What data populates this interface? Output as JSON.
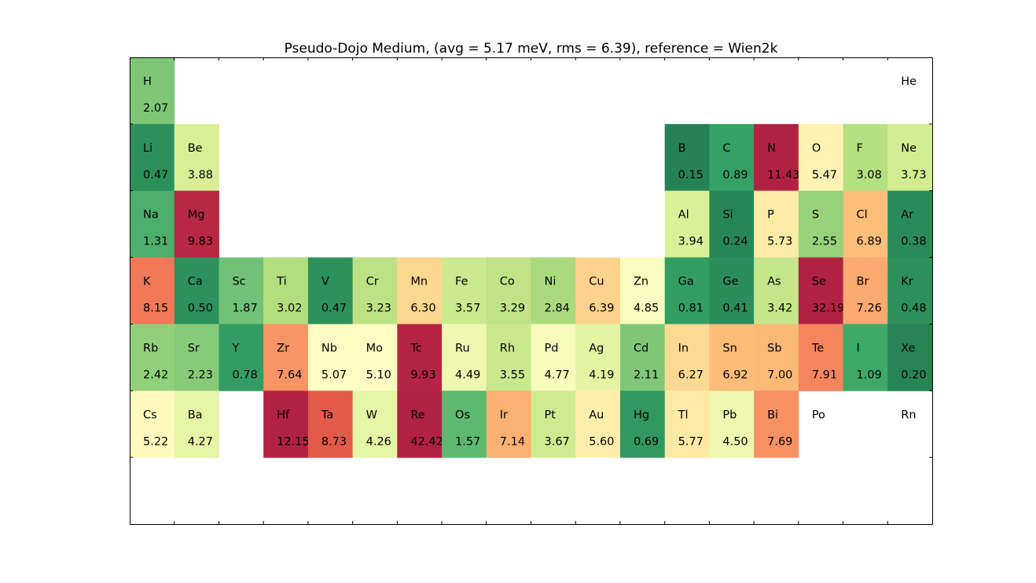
{
  "chart_data": {
    "type": "heatmap",
    "title": "Pseudo-Dojo Medium, (avg = 5.17 meV, rms = 6.39), reference = Wien2k",
    "layout": "periodic-table",
    "grid": false,
    "colormap": "RdYlGn_r",
    "color_range": [
      0,
      10
    ],
    "elements": [
      {
        "symbol": "H",
        "period": 1,
        "group": 1,
        "value": "2.07"
      },
      {
        "symbol": "He",
        "period": 1,
        "group": 18,
        "value": null
      },
      {
        "symbol": "Li",
        "period": 2,
        "group": 1,
        "value": "0.47"
      },
      {
        "symbol": "Be",
        "period": 2,
        "group": 2,
        "value": "3.88"
      },
      {
        "symbol": "B",
        "period": 2,
        "group": 13,
        "value": "0.15"
      },
      {
        "symbol": "C",
        "period": 2,
        "group": 14,
        "value": "0.89"
      },
      {
        "symbol": "N",
        "period": 2,
        "group": 15,
        "value": "11.43"
      },
      {
        "symbol": "O",
        "period": 2,
        "group": 16,
        "value": "5.47"
      },
      {
        "symbol": "F",
        "period": 2,
        "group": 17,
        "value": "3.08"
      },
      {
        "symbol": "Ne",
        "period": 2,
        "group": 18,
        "value": "3.73"
      },
      {
        "symbol": "Na",
        "period": 3,
        "group": 1,
        "value": "1.31"
      },
      {
        "symbol": "Mg",
        "period": 3,
        "group": 2,
        "value": "9.83"
      },
      {
        "symbol": "Al",
        "period": 3,
        "group": 13,
        "value": "3.94"
      },
      {
        "symbol": "Si",
        "period": 3,
        "group": 14,
        "value": "0.24"
      },
      {
        "symbol": "P",
        "period": 3,
        "group": 15,
        "value": "5.73"
      },
      {
        "symbol": "S",
        "period": 3,
        "group": 16,
        "value": "2.55"
      },
      {
        "symbol": "Cl",
        "period": 3,
        "group": 17,
        "value": "6.89"
      },
      {
        "symbol": "Ar",
        "period": 3,
        "group": 18,
        "value": "0.38"
      },
      {
        "symbol": "K",
        "period": 4,
        "group": 1,
        "value": "8.15"
      },
      {
        "symbol": "Ca",
        "period": 4,
        "group": 2,
        "value": "0.50"
      },
      {
        "symbol": "Sc",
        "period": 4,
        "group": 3,
        "value": "1.87"
      },
      {
        "symbol": "Ti",
        "period": 4,
        "group": 4,
        "value": "3.02"
      },
      {
        "symbol": "V",
        "period": 4,
        "group": 5,
        "value": "0.47"
      },
      {
        "symbol": "Cr",
        "period": 4,
        "group": 6,
        "value": "3.23"
      },
      {
        "symbol": "Mn",
        "period": 4,
        "group": 7,
        "value": "6.30"
      },
      {
        "symbol": "Fe",
        "period": 4,
        "group": 8,
        "value": "3.57"
      },
      {
        "symbol": "Co",
        "period": 4,
        "group": 9,
        "value": "3.29"
      },
      {
        "symbol": "Ni",
        "period": 4,
        "group": 10,
        "value": "2.84"
      },
      {
        "symbol": "Cu",
        "period": 4,
        "group": 11,
        "value": "6.39"
      },
      {
        "symbol": "Zn",
        "period": 4,
        "group": 12,
        "value": "4.85"
      },
      {
        "symbol": "Ga",
        "period": 4,
        "group": 13,
        "value": "0.81"
      },
      {
        "symbol": "Ge",
        "period": 4,
        "group": 14,
        "value": "0.41"
      },
      {
        "symbol": "As",
        "period": 4,
        "group": 15,
        "value": "3.42"
      },
      {
        "symbol": "Se",
        "period": 4,
        "group": 16,
        "value": "32.19"
      },
      {
        "symbol": "Br",
        "period": 4,
        "group": 17,
        "value": "7.26"
      },
      {
        "symbol": "Kr",
        "period": 4,
        "group": 18,
        "value": "0.48"
      },
      {
        "symbol": "Rb",
        "period": 5,
        "group": 1,
        "value": "2.42"
      },
      {
        "symbol": "Sr",
        "period": 5,
        "group": 2,
        "value": "2.23"
      },
      {
        "symbol": "Y",
        "period": 5,
        "group": 3,
        "value": "0.78"
      },
      {
        "symbol": "Zr",
        "period": 5,
        "group": 4,
        "value": "7.64"
      },
      {
        "symbol": "Nb",
        "period": 5,
        "group": 5,
        "value": "5.07"
      },
      {
        "symbol": "Mo",
        "period": 5,
        "group": 6,
        "value": "5.10"
      },
      {
        "symbol": "Tc",
        "period": 5,
        "group": 7,
        "value": "9.93"
      },
      {
        "symbol": "Ru",
        "period": 5,
        "group": 8,
        "value": "4.49"
      },
      {
        "symbol": "Rh",
        "period": 5,
        "group": 9,
        "value": "3.55"
      },
      {
        "symbol": "Pd",
        "period": 5,
        "group": 10,
        "value": "4.77"
      },
      {
        "symbol": "Ag",
        "period": 5,
        "group": 11,
        "value": "4.19"
      },
      {
        "symbol": "Cd",
        "period": 5,
        "group": 12,
        "value": "2.11"
      },
      {
        "symbol": "In",
        "period": 5,
        "group": 13,
        "value": "6.27"
      },
      {
        "symbol": "Sn",
        "period": 5,
        "group": 14,
        "value": "6.92"
      },
      {
        "symbol": "Sb",
        "period": 5,
        "group": 15,
        "value": "7.00"
      },
      {
        "symbol": "Te",
        "period": 5,
        "group": 16,
        "value": "7.91"
      },
      {
        "symbol": "I",
        "period": 5,
        "group": 17,
        "value": "1.09"
      },
      {
        "symbol": "Xe",
        "period": 5,
        "group": 18,
        "value": "0.20"
      },
      {
        "symbol": "Cs",
        "period": 6,
        "group": 1,
        "value": "5.22"
      },
      {
        "symbol": "Ba",
        "period": 6,
        "group": 2,
        "value": "4.27"
      },
      {
        "symbol": "Hf",
        "period": 6,
        "group": 4,
        "value": "12.15"
      },
      {
        "symbol": "Ta",
        "period": 6,
        "group": 5,
        "value": "8.73"
      },
      {
        "symbol": "W",
        "period": 6,
        "group": 6,
        "value": "4.26"
      },
      {
        "symbol": "Re",
        "period": 6,
        "group": 7,
        "value": "42.42"
      },
      {
        "symbol": "Os",
        "period": 6,
        "group": 8,
        "value": "1.57"
      },
      {
        "symbol": "Ir",
        "period": 6,
        "group": 9,
        "value": "7.14"
      },
      {
        "symbol": "Pt",
        "period": 6,
        "group": 10,
        "value": "3.67"
      },
      {
        "symbol": "Au",
        "period": 6,
        "group": 11,
        "value": "5.60"
      },
      {
        "symbol": "Hg",
        "period": 6,
        "group": 12,
        "value": "0.69"
      },
      {
        "symbol": "Tl",
        "period": 6,
        "group": 13,
        "value": "5.77"
      },
      {
        "symbol": "Pb",
        "period": 6,
        "group": 14,
        "value": "4.50"
      },
      {
        "symbol": "Bi",
        "period": 6,
        "group": 15,
        "value": "7.69"
      },
      {
        "symbol": "Po",
        "period": 6,
        "group": 16,
        "value": null
      },
      {
        "symbol": "Rn",
        "period": 6,
        "group": 18,
        "value": null
      }
    ]
  }
}
